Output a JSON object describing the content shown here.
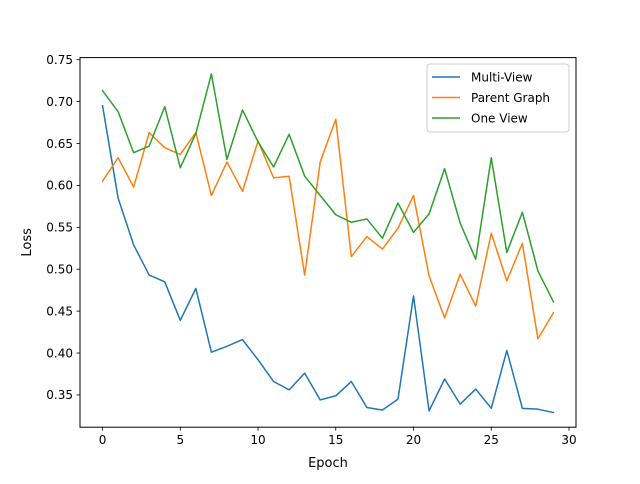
{
  "chart_data": {
    "type": "line",
    "title": "",
    "xlabel": "Epoch",
    "ylabel": "Loss",
    "xlim": [
      -1.45,
      30.45
    ],
    "ylim": [
      0.3115,
      0.7525
    ],
    "xticks": [
      0,
      5,
      10,
      15,
      20,
      25,
      30
    ],
    "xtick_labels": [
      "0",
      "5",
      "10",
      "15",
      "20",
      "25",
      "30"
    ],
    "yticks": [
      0.35,
      0.4,
      0.45,
      0.5,
      0.55,
      0.6,
      0.65,
      0.7,
      0.75
    ],
    "ytick_labels": [
      "0.35",
      "0.40",
      "0.45",
      "0.50",
      "0.55",
      "0.60",
      "0.65",
      "0.70",
      "0.75"
    ],
    "grid": false,
    "legend_position": "top-right",
    "x": [
      0,
      1,
      2,
      3,
      4,
      5,
      6,
      7,
      8,
      9,
      10,
      11,
      12,
      13,
      14,
      15,
      16,
      17,
      18,
      19,
      20,
      21,
      22,
      23,
      24,
      25,
      26,
      27,
      28,
      29
    ],
    "series": [
      {
        "name": "Multi-View",
        "color": "#1f77b4",
        "values": [
          0.695,
          0.585,
          0.529,
          0.493,
          0.485,
          0.439,
          0.477,
          0.401,
          0.408,
          0.416,
          0.392,
          0.366,
          0.356,
          0.376,
          0.344,
          0.349,
          0.366,
          0.335,
          0.332,
          0.345,
          0.468,
          0.331,
          0.369,
          0.339,
          0.357,
          0.334,
          0.403,
          0.334,
          0.333,
          0.329
        ]
      },
      {
        "name": "Parent Graph",
        "color": "#ff7f0e",
        "values": [
          0.605,
          0.633,
          0.598,
          0.663,
          0.645,
          0.637,
          0.663,
          0.588,
          0.628,
          0.593,
          0.653,
          0.609,
          0.611,
          0.493,
          0.628,
          0.679,
          0.515,
          0.539,
          0.524,
          0.549,
          0.588,
          0.492,
          0.442,
          0.494,
          0.456,
          0.543,
          0.486,
          0.531,
          0.417,
          0.448
        ]
      },
      {
        "name": "One View",
        "color": "#2ca02c",
        "values": [
          0.713,
          0.688,
          0.639,
          0.647,
          0.694,
          0.621,
          0.662,
          0.733,
          0.631,
          0.69,
          0.652,
          0.622,
          0.661,
          0.611,
          0.588,
          0.565,
          0.556,
          0.56,
          0.537,
          0.579,
          0.544,
          0.566,
          0.62,
          0.555,
          0.512,
          0.633,
          0.52,
          0.568,
          0.498,
          0.461
        ]
      }
    ]
  }
}
